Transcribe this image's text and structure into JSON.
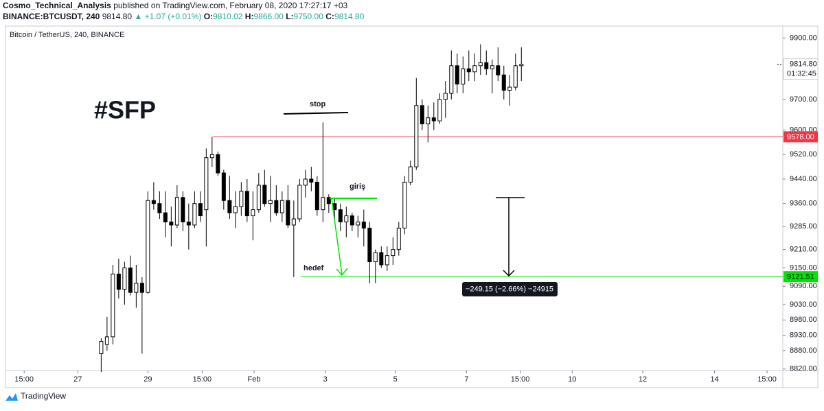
{
  "header": {
    "publisher": "Cosmo_Technical_Analysis",
    "published": "published on TradingView.com, February 08, 2020 17:27:17 +03",
    "symbol": "BINANCE:BTCUSDT, 240",
    "last": "9814.80",
    "change": "▲ +1.07 (+0.01%)",
    "o_label": "O:",
    "o": "9810.02",
    "h_label": "H:",
    "h": "9866.00",
    "l_label": "L:",
    "l": "9750.00",
    "c_label": "C:",
    "c": "9814.80"
  },
  "footer": "TradingView",
  "chart_data": {
    "type": "candlestick",
    "title": "Bitcoin / TetherUS, 240, BINANCE",
    "up_color": "#ffffff",
    "down_color": "#000000",
    "grid": false,
    "open": [
      8870,
      8900,
      8925,
      9130,
      9080,
      9150,
      9070,
      9100,
      9070,
      9370,
      9360,
      9330,
      9300,
      9290,
      9380,
      9300,
      9290,
      9360,
      9340,
      9510,
      9520,
      9460,
      9370,
      9330,
      9350,
      9400,
      9320,
      9340,
      9420,
      9360,
      9370,
      9330,
      9370,
      9290,
      9310,
      9420,
      9440,
      9430,
      9340,
      9380,
      9360,
      9340,
      9300,
      9320,
      9290,
      9300,
      9280,
      9170,
      9200,
      9160,
      9190,
      9210,
      9280,
      9430,
      9480,
      9680,
      9620,
      9640,
      9630,
      9700,
      9720,
      9810,
      9750,
      9800,
      9790,
      9810,
      9820,
      9800,
      9810,
      9780,
      9730,
      9740,
      9810
    ],
    "high": [
      8920,
      8990,
      9160,
      9180,
      9170,
      9190,
      9160,
      9120,
      9400,
      9430,
      9400,
      9400,
      9350,
      9420,
      9400,
      9360,
      9400,
      9400,
      9540,
      9578,
      9530,
      9470,
      9450,
      9400,
      9430,
      9440,
      9400,
      9460,
      9470,
      9450,
      9420,
      9400,
      9420,
      9370,
      9440,
      9470,
      9480,
      9450,
      9625,
      9390,
      9380,
      9360,
      9350,
      9330,
      9320,
      9340,
      9300,
      9210,
      9220,
      9220,
      9250,
      9300,
      9450,
      9500,
      9770,
      9700,
      9680,
      9690,
      9720,
      9760,
      9860,
      9850,
      9840,
      9860,
      9850,
      9880,
      9860,
      9830,
      9870,
      9810,
      9780,
      9850,
      9870
    ],
    "low": [
      8810,
      8880,
      8900,
      9050,
      9030,
      9060,
      9020,
      8870,
      9065,
      9340,
      9310,
      9250,
      9220,
      9280,
      9270,
      9210,
      9280,
      9300,
      9220,
      9480,
      9450,
      9340,
      9310,
      9280,
      9320,
      9300,
      9240,
      9330,
      9350,
      9300,
      9320,
      9300,
      9280,
      9120,
      9300,
      9380,
      9400,
      9320,
      9300,
      9330,
      9300,
      9270,
      9250,
      9270,
      9250,
      9220,
      9100,
      9100,
      9150,
      9140,
      9160,
      9190,
      9260,
      9420,
      9470,
      9600,
      9560,
      9600,
      9620,
      9640,
      9700,
      9720,
      9720,
      9760,
      9760,
      9780,
      9780,
      9720,
      9760,
      9700,
      9680,
      9730,
      9760
    ],
    "close": [
      8910,
      8925,
      9130,
      9080,
      9150,
      9070,
      9100,
      9070,
      9370,
      9360,
      9330,
      9300,
      9290,
      9380,
      9300,
      9290,
      9360,
      9320,
      9510,
      9520,
      9460,
      9370,
      9330,
      9350,
      9400,
      9320,
      9340,
      9420,
      9360,
      9370,
      9330,
      9370,
      9290,
      9310,
      9420,
      9440,
      9430,
      9340,
      9380,
      9360,
      9340,
      9300,
      9320,
      9290,
      9300,
      9280,
      9170,
      9200,
      9160,
      9190,
      9210,
      9280,
      9430,
      9480,
      9680,
      9620,
      9640,
      9630,
      9700,
      9720,
      9810,
      9750,
      9800,
      9790,
      9810,
      9820,
      9800,
      9810,
      9780,
      9730,
      9740,
      9810,
      9814.8
    ],
    "xlim": [
      -16.4,
      116.8
    ],
    "xticks": [
      {
        "value": -13.2,
        "label": "15:00"
      },
      {
        "value": -4,
        "label": "27"
      },
      {
        "value": 8,
        "label": "29"
      },
      {
        "value": 17.3,
        "label": "15:00"
      },
      {
        "value": 26.2,
        "label": "Feb"
      },
      {
        "value": 38.4,
        "label": "3"
      },
      {
        "value": 50.4,
        "label": "5"
      },
      {
        "value": 62.6,
        "label": "7"
      },
      {
        "value": 71.8,
        "label": "15:00"
      },
      {
        "value": 80.7,
        "label": "10"
      },
      {
        "value": 92.8,
        "label": "12"
      },
      {
        "value": 105.1,
        "label": "14"
      },
      {
        "value": 114.1,
        "label": "15:00"
      }
    ],
    "ylim": [
      8815,
      9935
    ],
    "yticks": [
      {
        "value": 9900,
        "label": "9900.00"
      },
      {
        "value": 9700,
        "label": "9700.00"
      },
      {
        "value": 9600,
        "label": "9600.00"
      },
      {
        "value": 9520,
        "label": "9520.00"
      },
      {
        "value": 9440,
        "label": "9440.00"
      },
      {
        "value": 9360,
        "label": "9360.00"
      },
      {
        "value": 9285,
        "label": "9285.00"
      },
      {
        "value": 9210,
        "label": "9210.00"
      },
      {
        "value": 9150,
        "label": "9150.00"
      },
      {
        "value": 9090,
        "label": "9090.00"
      },
      {
        "value": 9030,
        "label": "9030.00"
      },
      {
        "value": 8980,
        "label": "8980.00"
      },
      {
        "value": 8930,
        "label": "8930.00"
      },
      {
        "value": 8880,
        "label": "8880.00"
      },
      {
        "value": 8820,
        "label": "8820.00"
      }
    ],
    "last_price": {
      "value": 9814.8,
      "label": "9814.80"
    },
    "countdown": "01:32:45",
    "hlines": [
      {
        "value": 9578,
        "label": "9578.00",
        "color": "#f23645"
      },
      {
        "value": 9121.51,
        "label": "9121.51",
        "color": "#00e600"
      }
    ],
    "annotations": {
      "tag": "#SFP",
      "stop": "stop",
      "entry": "giriş",
      "target": "hedef",
      "measure": "−249.15 (−2.66%) −24915"
    }
  }
}
